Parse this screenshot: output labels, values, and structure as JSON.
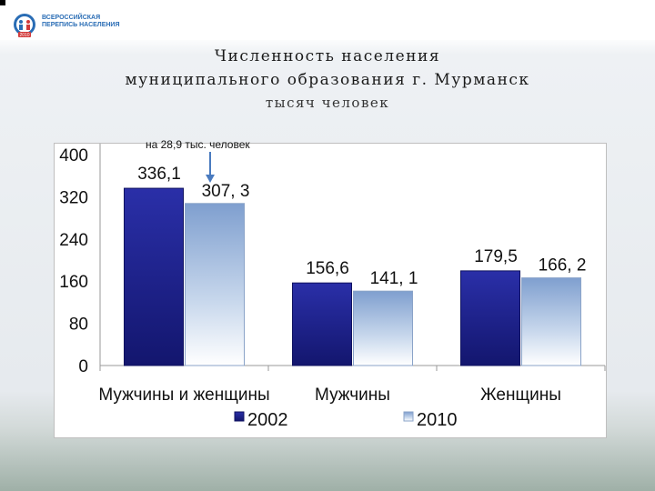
{
  "header": {
    "logo_text": "ВСЕРОССИЙСКАЯ\nПЕРЕПИСЬ НАСЕЛЕНИЯ",
    "logo_year": "2010"
  },
  "title_line1": "Численность населения",
  "title_line2": "муниципального образования г. Мурманск",
  "subtitle": "тысяч человек",
  "annotation": "на 28,9 тыс. человек",
  "chart_data": {
    "type": "bar",
    "categories": [
      "Мужчины и женщины",
      "Мужчины",
      "Женщины"
    ],
    "series": [
      {
        "name": "2002",
        "values": [
          336.1,
          156.6,
          179.5
        ],
        "labels": [
          "336,1",
          "156,6",
          "179,5"
        ],
        "color": "#1c1f8f"
      },
      {
        "name": "2010",
        "values": [
          307.3,
          141.1,
          166.2
        ],
        "labels": [
          "307, 3",
          "141, 1",
          "166, 2"
        ],
        "color": "#b9cde6"
      }
    ],
    "ylim": [
      0,
      400
    ],
    "yticks": [
      0,
      80,
      160,
      240,
      320,
      400
    ],
    "grid": false,
    "legend": "bottom"
  }
}
